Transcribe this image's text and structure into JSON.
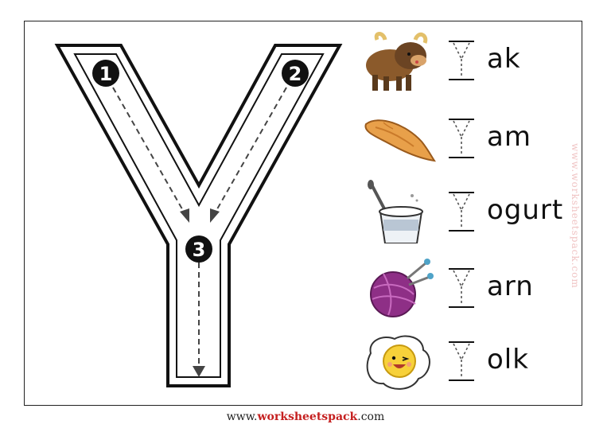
{
  "worksheet": {
    "letter": "Y",
    "steps": [
      "1",
      "2",
      "3"
    ],
    "rows": [
      {
        "picture": "yak-icon",
        "suffix": "ak"
      },
      {
        "picture": "yam-icon",
        "suffix": "am"
      },
      {
        "picture": "yogurt-icon",
        "suffix": "ogurt"
      },
      {
        "picture": "yarn-icon",
        "suffix": "arn"
      },
      {
        "picture": "yolk-icon",
        "suffix": "olk"
      }
    ]
  },
  "watermark": "www.worksheetspack.com",
  "footer": {
    "prefix": "www.",
    "brand": "worksheetspack",
    "suffix": ".com"
  },
  "colors": {
    "accent": "#c51f1f",
    "yak": "#8b5a2b",
    "yam": "#e8a04a",
    "yarn": "#8e2f86",
    "yolk": "#f7d13a"
  }
}
